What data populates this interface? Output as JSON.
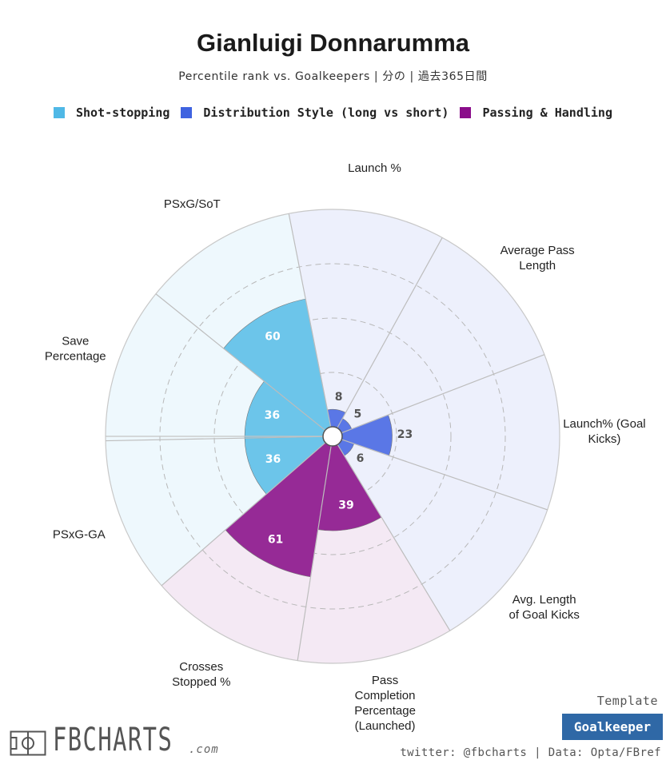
{
  "header": {
    "title": "Gianluigi Donnarumma",
    "subtitle": "Percentile rank vs. Goalkeepers | 分の | 過去365日間"
  },
  "legend": [
    {
      "label": "Shot-stopping",
      "color": "#4fb8e6"
    },
    {
      "label": "Distribution Style (long vs short)",
      "color": "#3f63e0"
    },
    {
      "label": "Passing & Handling",
      "color": "#8a0d8a"
    }
  ],
  "chart_data": {
    "type": "polar-bar",
    "rlim": [
      0,
      100
    ],
    "grid": true,
    "ring_values": [
      25,
      50,
      75
    ],
    "groups": [
      {
        "name": "Shot-stopping",
        "color": "#4fb8e6",
        "bar_color": "#6cc5ea",
        "bg_color": "#eef8fd"
      },
      {
        "name": "Distribution Style (long vs short)",
        "color": "#3f63e0",
        "bar_color": "#5a77e6",
        "bg_color": "#edf0fc"
      },
      {
        "name": "Passing & Handling",
        "color": "#8a0d8a",
        "bar_color": "#962a96",
        "bg_color": "#f4e9f4"
      }
    ],
    "metrics": [
      {
        "label": "Launch %",
        "value": 8,
        "group": 1
      },
      {
        "label": "Average Pass Length",
        "value": 5,
        "group": 1
      },
      {
        "label": "Launch% (Goal Kicks)",
        "value": 23,
        "group": 1
      },
      {
        "label": "Avg. Length of Goal Kicks",
        "value": 6,
        "group": 1
      },
      {
        "label": "Pass Completion Percentage (Launched)",
        "value": 39,
        "group": 2
      },
      {
        "label": "Crosses Stopped %",
        "value": 61,
        "group": 2
      },
      {
        "label": "PSxG-GA",
        "value": 36,
        "group": 0
      },
      {
        "label": "Save Percentage",
        "value": 36,
        "group": 0
      },
      {
        "label": "PSxG/SoT",
        "value": 60,
        "group": 0
      }
    ]
  },
  "footer": {
    "brand": "FBCHARTS",
    "brand_suffix": ".com",
    "template_label": "Template",
    "template_name": "Goalkeeper",
    "credit": "twitter: @fbcharts | Data: Opta/FBref"
  }
}
